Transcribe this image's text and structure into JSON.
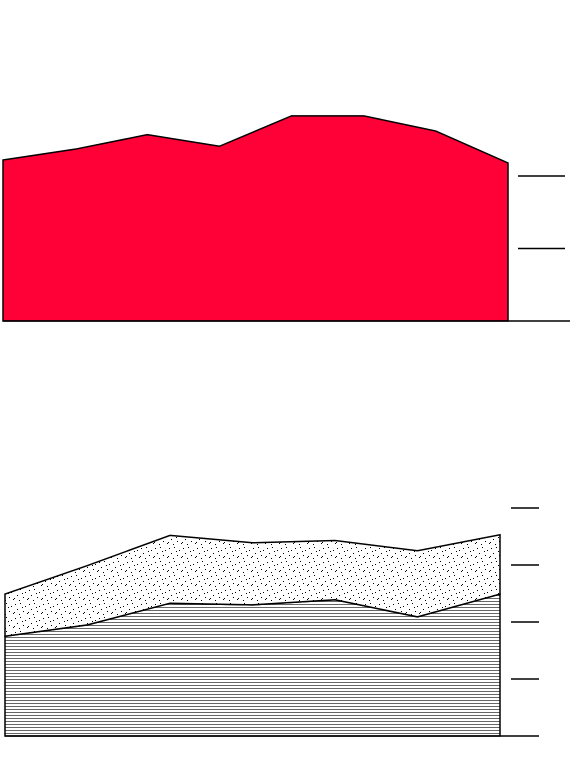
{
  "chart_data": [
    {
      "type": "area",
      "color": "#ff0037",
      "values": [
        22.2,
        23.7,
        25.7,
        24.1,
        28.3,
        28.3,
        26.2,
        21.8
      ],
      "ylim": [
        0,
        30
      ],
      "yticks": [
        0,
        10,
        20
      ]
    },
    {
      "type": "stacked_area",
      "series": [
        {
          "color": "#ffffff",
          "pattern": "horizontal-lines",
          "values": [
            17.5,
            19.5,
            23.3,
            23.0,
            23.9,
            20.9,
            24.9
          ]
        },
        {
          "color": "#ffffff",
          "pattern": "dots",
          "values": [
            7.4,
            10.4,
            11.9,
            10.9,
            10.4,
            11.6,
            10.4
          ]
        }
      ],
      "ylim": [
        0,
        40
      ],
      "yticks": [
        0,
        10,
        20,
        30,
        40
      ]
    }
  ]
}
